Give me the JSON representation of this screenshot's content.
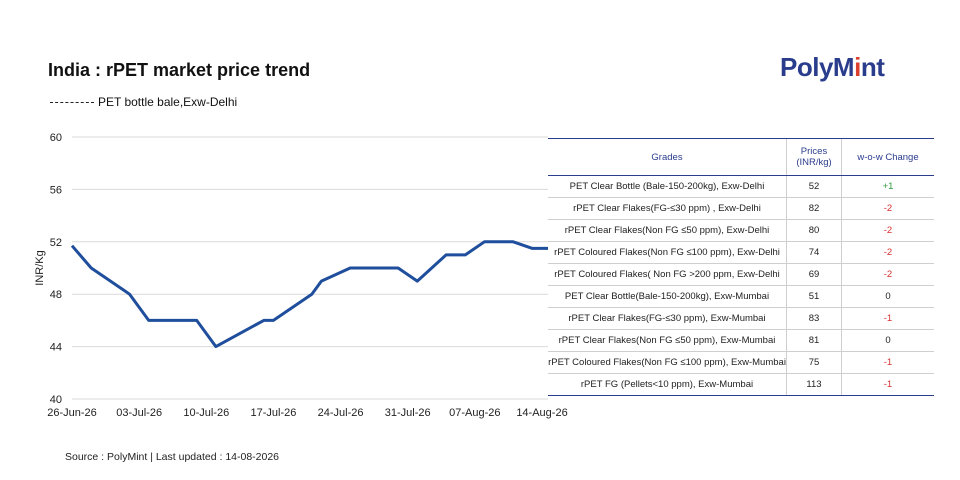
{
  "header": {
    "title": "India : rPET market price trend",
    "legend_label": "PET bottle bale,Exw-Delhi",
    "logo_text_a": "PolyM",
    "logo_text_b": "i",
    "logo_text_c": "nt"
  },
  "chart_data": {
    "type": "line",
    "title": "India : rPET market price trend",
    "ylabel": "INR/Kg",
    "xlabel": "",
    "ylim": [
      40,
      60
    ],
    "yticks": [
      "40",
      "44",
      "48",
      "52",
      "56",
      "60"
    ],
    "xticks": [
      "26-Jun-26",
      "03-Jul-26",
      "10-Jul-26",
      "17-Jul-26",
      "24-Jul-26",
      "31-Jul-26",
      "07-Aug-26",
      "14-Aug-26"
    ],
    "grid": "horizontal",
    "series": [
      {
        "name": "PET bottle bale,Exw-Delhi",
        "color": "#1f4e9c",
        "points": [
          {
            "x": "26-Jun-26",
            "y": 51.7
          },
          {
            "x": "28-Jun-26",
            "y": 50
          },
          {
            "x": "02-Jul-26",
            "y": 48
          },
          {
            "x": "04-Jul-26",
            "y": 46
          },
          {
            "x": "09-Jul-26",
            "y": 46
          },
          {
            "x": "11-Jul-26",
            "y": 44
          },
          {
            "x": "16-Jul-26",
            "y": 46
          },
          {
            "x": "17-Jul-26",
            "y": 46
          },
          {
            "x": "21-Jul-26",
            "y": 48
          },
          {
            "x": "22-Jul-26",
            "y": 49
          },
          {
            "x": "25-Jul-26",
            "y": 50
          },
          {
            "x": "30-Jul-26",
            "y": 50
          },
          {
            "x": "01-Aug-26",
            "y": 49
          },
          {
            "x": "04-Aug-26",
            "y": 51
          },
          {
            "x": "06-Aug-26",
            "y": 51
          },
          {
            "x": "08-Aug-26",
            "y": 52
          },
          {
            "x": "11-Aug-26",
            "y": 52
          },
          {
            "x": "13-Aug-26",
            "y": 51.5
          },
          {
            "x": "15-Aug-26",
            "y": 51.5
          }
        ]
      }
    ]
  },
  "table": {
    "headers": {
      "grades": "Grades",
      "prices_line1": "Prices",
      "prices_line2": "(INR/kg)",
      "change": "w-o-w Change"
    },
    "rows": [
      {
        "grade": "PET Clear Bottle (Bale-150-200kg), Exw-Delhi",
        "price": "52",
        "change": "+1",
        "trend": "pos"
      },
      {
        "grade": "rPET Clear Flakes(FG-≤30 ppm) , Exw-Delhi",
        "price": "82",
        "change": "-2",
        "trend": "neg"
      },
      {
        "grade": "rPET Clear Flakes(Non FG ≤50 ppm), Exw-Delhi",
        "price": "80",
        "change": "-2",
        "trend": "neg"
      },
      {
        "grade": "rPET Coloured Flakes(Non FG ≤100 ppm), Exw-Delhi",
        "price": "74",
        "change": "-2",
        "trend": "neg"
      },
      {
        "grade": "rPET Coloured Flakes( Non FG >200 ppm, Exw-Delhi",
        "price": "69",
        "change": "-2",
        "trend": "neg"
      },
      {
        "grade": "PET Clear Bottle(Bale-150-200kg), Exw-Mumbai",
        "price": "51",
        "change": "0",
        "trend": "zero"
      },
      {
        "grade": "rPET Clear Flakes(FG-≤30 ppm), Exw-Mumbai",
        "price": "83",
        "change": "-1",
        "trend": "neg"
      },
      {
        "grade": "rPET Clear Flakes(Non FG ≤50 ppm), Exw-Mumbai",
        "price": "81",
        "change": "0",
        "trend": "zero"
      },
      {
        "grade": "rPET Coloured Flakes(Non FG  ≤100 ppm), Exw-Mumbai",
        "price": "75",
        "change": "-1",
        "trend": "neg"
      },
      {
        "grade": "rPET FG (Pellets<10 ppm), Exw-Mumbai",
        "price": "113",
        "change": "-1",
        "trend": "neg"
      }
    ]
  },
  "footer": {
    "source": "Source : PolyMint | Last updated : 14-08-2026"
  }
}
